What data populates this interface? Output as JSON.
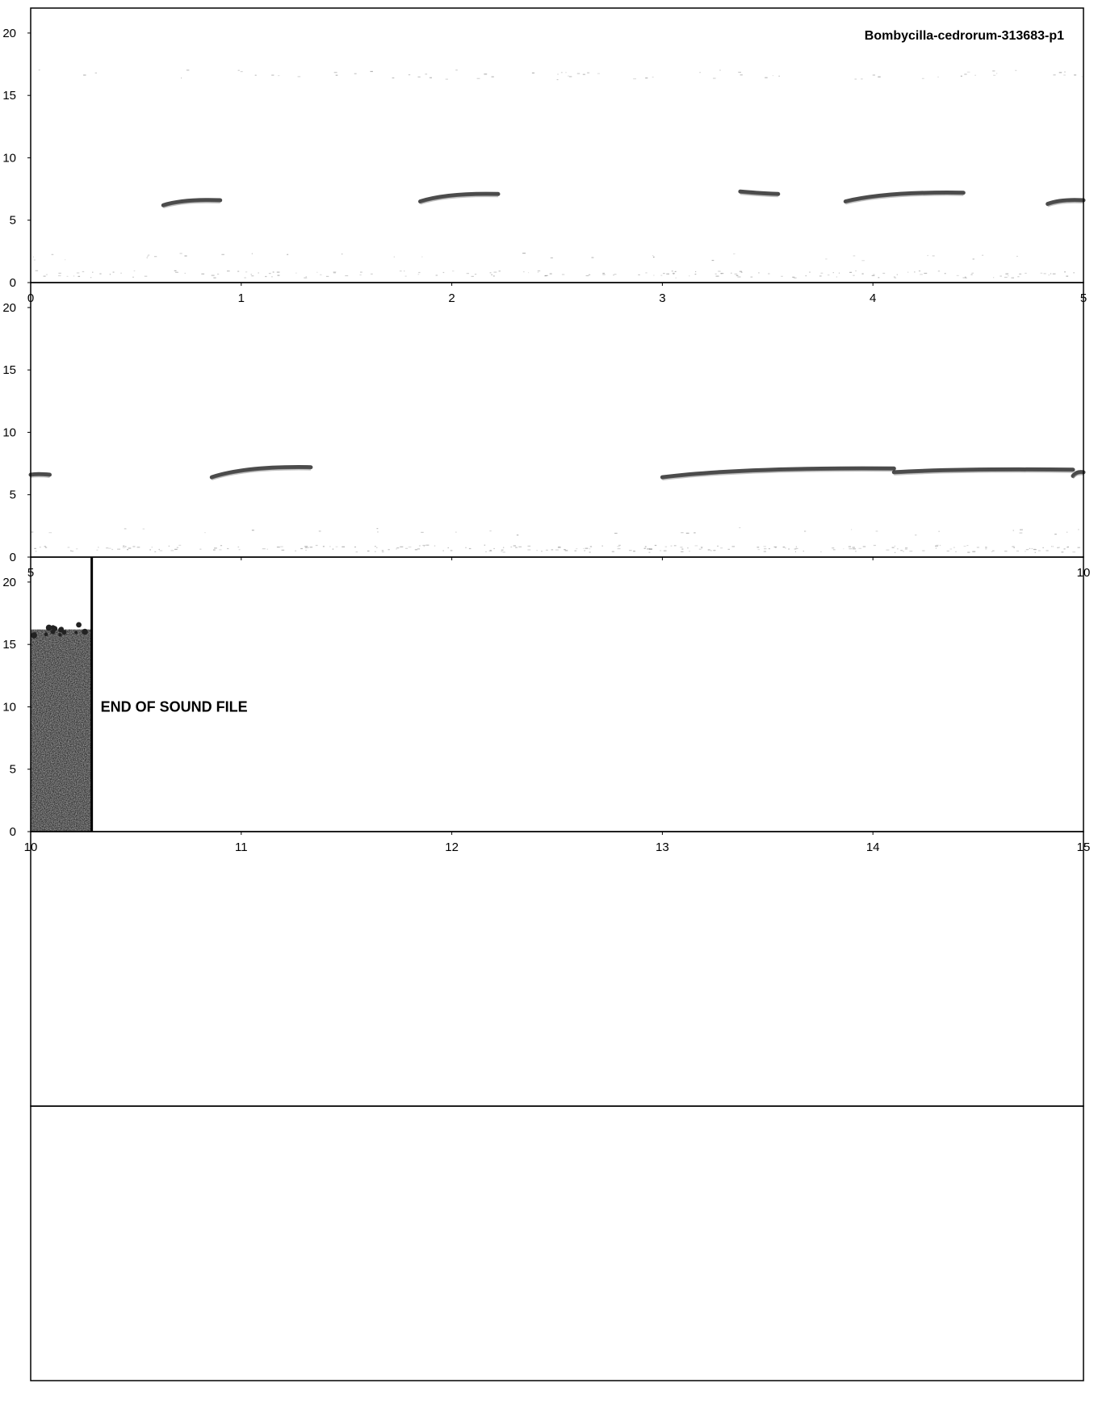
{
  "title": "Bombycilla-cedrorum-313683-p1",
  "end_label": "END OF SOUND FILE",
  "colors": {
    "ink": "#000000",
    "background": "#ffffff",
    "syllable": "#2b2b2b",
    "noise": "#8a8a8a"
  },
  "chart_data": {
    "type": "heatmap",
    "title": "Bombycilla-cedrorum-313683-p1",
    "xlabel": "",
    "ylabel": "",
    "grid": false,
    "panels": [
      {
        "xlim": [
          0,
          5
        ],
        "ylim": [
          0,
          22
        ],
        "x_ticks": [
          "0",
          "1",
          "2",
          "3",
          "4",
          "5"
        ],
        "y_ticks": [
          "0",
          "5",
          "10",
          "15",
          "20"
        ],
        "syllables": [
          {
            "t_start": 0.63,
            "t_end": 0.9,
            "f_start": 6.2,
            "f_end": 6.6
          },
          {
            "t_start": 1.85,
            "t_end": 2.22,
            "f_start": 6.5,
            "f_end": 7.1
          },
          {
            "t_start": 3.37,
            "t_end": 3.55,
            "f_start": 7.3,
            "f_end": 7.1
          },
          {
            "t_start": 3.87,
            "t_end": 4.43,
            "f_start": 6.5,
            "f_end": 7.2
          },
          {
            "t_start": 4.83,
            "t_end": 5.0,
            "f_start": 6.3,
            "f_end": 6.6
          }
        ]
      },
      {
        "xlim": [
          5,
          10
        ],
        "ylim": [
          0,
          22
        ],
        "x_ticks": [
          "5",
          "",
          "",
          "",
          "",
          "10"
        ],
        "y_ticks": [
          "0",
          "5",
          "10",
          "15",
          "20"
        ],
        "syllables": [
          {
            "t_start": 5.0,
            "t_end": 5.09,
            "f_start": 6.6,
            "f_end": 6.6
          },
          {
            "t_start": 5.86,
            "t_end": 6.33,
            "f_start": 6.4,
            "f_end": 7.2
          },
          {
            "t_start": 8.0,
            "t_end": 9.1,
            "f_start": 6.4,
            "f_end": 7.1
          },
          {
            "t_start": 9.1,
            "t_end": 9.95,
            "f_start": 6.8,
            "f_end": 7.0
          },
          {
            "t_start": 9.95,
            "t_end": 10.0,
            "f_start": 6.5,
            "f_end": 6.8
          }
        ]
      },
      {
        "xlim": [
          10,
          15
        ],
        "ylim": [
          0,
          22
        ],
        "x_ticks": [
          "10",
          "11",
          "12",
          "13",
          "14",
          "15"
        ],
        "y_ticks": [
          "0",
          "5",
          "10",
          "15",
          "20"
        ],
        "syllables": [],
        "end_of_file_at": 10.29
      },
      {
        "xlim": [
          15,
          20
        ],
        "ylim": [
          0,
          22
        ],
        "x_ticks": [],
        "y_ticks": [],
        "syllables": []
      },
      {
        "xlim": [
          20,
          25
        ],
        "ylim": [
          0,
          22
        ],
        "x_ticks": [],
        "y_ticks": [],
        "syllables": []
      }
    ]
  }
}
